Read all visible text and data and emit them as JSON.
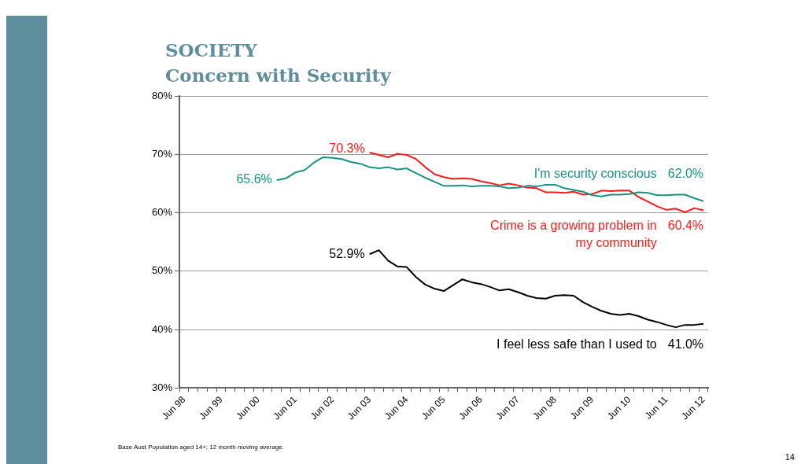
{
  "chart_data": {
    "type": "line",
    "title": "SOCIETY",
    "subtitle": "Concern with Security",
    "categories": [
      "Jun 98",
      null,
      null,
      null,
      "Jun 99",
      null,
      null,
      null,
      "Jun 00",
      null,
      null,
      null,
      "Jun 01",
      null,
      null,
      null,
      "Jun 02",
      null,
      null,
      null,
      "Jun 03",
      null,
      null,
      null,
      "Jun 04",
      null,
      null,
      null,
      "Jun 05",
      null,
      null,
      null,
      "Jun 06",
      null,
      null,
      null,
      "Jun 07",
      null,
      null,
      null,
      "Jun 08",
      null,
      null,
      null,
      "Jun 09",
      null,
      null,
      null,
      "Jun 10",
      null,
      null,
      null,
      "Jun 11",
      null,
      null,
      null,
      "Jun 12"
    ],
    "series": [
      {
        "name": "I'm security conscious",
        "color": "#17937f",
        "values": [
          null,
          null,
          null,
          null,
          null,
          null,
          null,
          null,
          null,
          null,
          65.6,
          65.9,
          66.9,
          67.3,
          68.6,
          69.5,
          69.4,
          69.2,
          68.7,
          68.4,
          67.8,
          67.6,
          67.8,
          67.4,
          67.6,
          66.8,
          66.0,
          65.3,
          64.6,
          64.6,
          64.7,
          64.5,
          64.6,
          64.6,
          64.5,
          64.2,
          64.3,
          64.6,
          64.5,
          64.8,
          64.8,
          64.2,
          63.9,
          63.6,
          63.0,
          62.8,
          63.1,
          63.1,
          63.2,
          63.5,
          63.4,
          63.0,
          63.0,
          63.1,
          63.1,
          62.5,
          62.0
        ],
        "value_labels": [
          null,
          null,
          null,
          null,
          null,
          null,
          null,
          null,
          null,
          null,
          "65.6%",
          null,
          null,
          null,
          null,
          null,
          null,
          null,
          null,
          null,
          null,
          null,
          null,
          null,
          null,
          null,
          null,
          null,
          null,
          null,
          null,
          null,
          null,
          null,
          null,
          null,
          null,
          null,
          null,
          null,
          null,
          null,
          null,
          null,
          null,
          null,
          null,
          null,
          null,
          null,
          null,
          null,
          null,
          null,
          null,
          null,
          "62.0%"
        ]
      },
      {
        "name": "Crime is a growing problem in my community",
        "color": "#ff1a1a",
        "values": [
          null,
          null,
          null,
          null,
          null,
          null,
          null,
          null,
          null,
          null,
          null,
          null,
          null,
          null,
          null,
          null,
          null,
          null,
          null,
          null,
          70.3,
          69.9,
          69.5,
          70.1,
          69.9,
          69.2,
          67.8,
          66.6,
          66.1,
          65.8,
          65.9,
          65.8,
          65.4,
          65.1,
          64.7,
          65.0,
          64.7,
          64.3,
          64.2,
          63.5,
          63.5,
          63.4,
          63.6,
          63.1,
          63.2,
          63.8,
          63.7,
          63.8,
          63.8,
          62.7,
          61.9,
          61.1,
          60.5,
          60.7,
          60.1,
          60.8,
          60.4
        ],
        "value_labels": [
          null,
          null,
          null,
          null,
          null,
          null,
          null,
          null,
          null,
          null,
          null,
          null,
          null,
          null,
          null,
          null,
          null,
          null,
          null,
          null,
          "70.3%",
          null,
          null,
          null,
          null,
          null,
          null,
          null,
          null,
          null,
          null,
          null,
          null,
          null,
          null,
          null,
          null,
          null,
          null,
          null,
          null,
          null,
          null,
          null,
          null,
          null,
          null,
          null,
          null,
          null,
          null,
          null,
          null,
          null,
          null,
          null,
          "60.4%"
        ]
      },
      {
        "name": "I feel less safe than I used to",
        "color": "#000000",
        "values": [
          null,
          null,
          null,
          null,
          null,
          null,
          null,
          null,
          null,
          null,
          null,
          null,
          null,
          null,
          null,
          null,
          null,
          null,
          null,
          null,
          52.9,
          53.6,
          51.8,
          50.8,
          50.7,
          49.0,
          47.7,
          47.0,
          46.6,
          47.6,
          48.6,
          48.1,
          47.8,
          47.3,
          46.7,
          46.9,
          46.4,
          45.8,
          45.4,
          45.3,
          45.8,
          45.9,
          45.8,
          44.7,
          43.9,
          43.2,
          42.7,
          42.5,
          42.7,
          42.3,
          41.7,
          41.3,
          40.8,
          40.4,
          40.8,
          40.8,
          41.0
        ],
        "value_labels": [
          null,
          null,
          null,
          null,
          null,
          null,
          null,
          null,
          null,
          null,
          null,
          null,
          null,
          null,
          null,
          null,
          null,
          null,
          null,
          null,
          "52.9%",
          null,
          null,
          null,
          null,
          null,
          null,
          null,
          null,
          null,
          null,
          null,
          null,
          null,
          null,
          null,
          null,
          null,
          null,
          null,
          null,
          null,
          null,
          null,
          null,
          null,
          null,
          null,
          null,
          null,
          null,
          null,
          null,
          null,
          null,
          null,
          "41.0%"
        ]
      }
    ],
    "ylim": [
      30,
      80
    ],
    "yticks": [
      {
        "value": 30,
        "label": "30%"
      },
      {
        "value": 40,
        "label": "40%"
      },
      {
        "value": 50,
        "label": "50%"
      },
      {
        "value": 60,
        "label": "60%"
      },
      {
        "value": 70,
        "label": "70%"
      },
      {
        "value": 80,
        "label": "80%"
      }
    ],
    "grid": "y",
    "legend": false,
    "marker": "none",
    "line_style": "solid",
    "annotations": [
      "Base Aust Population aged 14+; 12 month moving average.",
      "14"
    ]
  }
}
